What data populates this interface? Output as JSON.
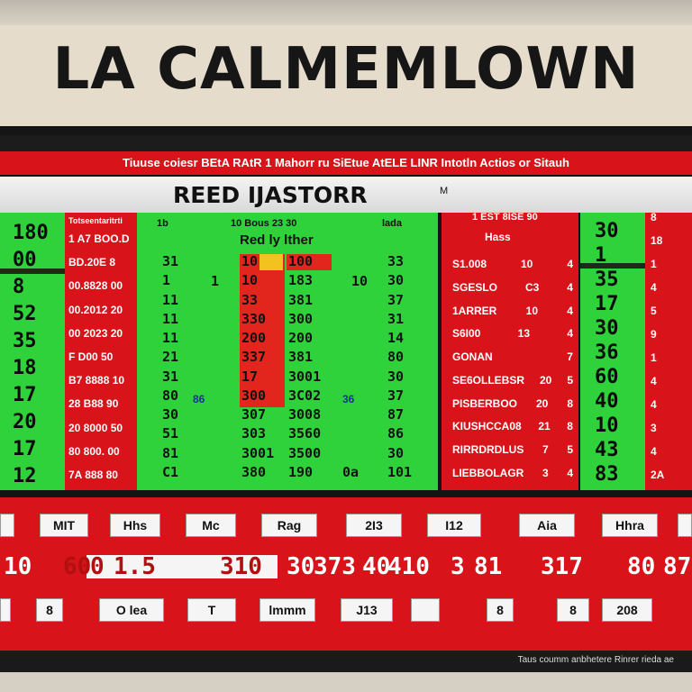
{
  "sign": {
    "text": "LA CALMEMLOWN"
  },
  "ticker": {
    "text": "Tiuuse coiesr BEtA RAtR 1 Mahorr ru SiEtue AtELE LINR Intotln Actios or Sitauh"
  },
  "title": {
    "text": "REED IJASTORR",
    "mark": "M"
  },
  "left_green": {
    "values": [
      "180",
      "00",
      "8",
      "52",
      "35",
      "18",
      "17",
      "20",
      "17",
      "12"
    ]
  },
  "left_red": {
    "header": "Totseentaritrti",
    "rows": [
      "1 A7 BOO.D",
      "BD.20E 8",
      "00.8828 00",
      "00.2012 20",
      "00 2023 20",
      "F D00 50",
      "B7 8888 10",
      "28 B88 90",
      "20 8000 50",
      "80 800. 00",
      "7A 888 80"
    ]
  },
  "center": {
    "headers": [
      "1b",
      "10  Bous 23 30",
      "lada"
    ],
    "subtitle": "Red ly lther",
    "col1": [
      "31",
      "1",
      "11",
      "11",
      "11",
      "21",
      "31",
      "80",
      "30",
      "51",
      "81",
      "C1"
    ],
    "col2": [
      "10",
      "10",
      "33",
      "330",
      "200",
      "337",
      "17",
      "300",
      "307",
      "303",
      "3001",
      "380"
    ],
    "col3": [
      "100",
      "183",
      "381",
      "300",
      "200",
      "381",
      "3001",
      "3C02",
      "3008",
      "3560",
      "3500",
      "190"
    ],
    "col4": [
      "33",
      "30",
      "37",
      "31",
      "14",
      "80",
      "30",
      "37",
      "87",
      "86",
      "30",
      "101"
    ],
    "mid_left": "86",
    "mid_right": "36",
    "side_a": "1",
    "side_b": "10",
    "bottom_tag": "0a"
  },
  "right_red": {
    "header": "1 EST 8ISE 90",
    "sub": "Hass",
    "rows": [
      {
        "name": "S1.008",
        "v": "10"
      },
      {
        "name": "SGESLO",
        "v": "C3"
      },
      {
        "name": "1ARRER",
        "v": "10"
      },
      {
        "name": "S6I00",
        "v": "13"
      },
      {
        "name": "GONAN",
        "v": ""
      },
      {
        "name": "SE6OLLEBSR",
        "v": "20"
      },
      {
        "name": "PISBERBOO",
        "v": "20"
      },
      {
        "name": "KIUSHCCA08",
        "v": "21"
      },
      {
        "name": "RIRRDRDLUS",
        "v": "7"
      },
      {
        "name": "LIEBBOLAGR",
        "v": "3"
      }
    ],
    "nums": [
      "4",
      "4",
      "4",
      "4",
      "7",
      "5",
      "8",
      "8",
      "5",
      "4"
    ]
  },
  "right_green": {
    "values": [
      "30",
      "1",
      "35",
      "17",
      "30",
      "36",
      "60",
      "40",
      "10",
      "43",
      "83"
    ]
  },
  "far_right": {
    "values": [
      "8",
      "18",
      "1",
      "4",
      "5",
      "9",
      "1",
      "4",
      "4",
      "3",
      "4",
      "2A"
    ]
  },
  "labels_row1": [
    "",
    "MIT",
    "Hhs",
    "Mc",
    "Rag",
    "2I3",
    "I12",
    "Aia",
    "Hhra",
    ""
  ],
  "big_row": [
    "10",
    "60",
    "0",
    "1.5",
    "310",
    "30",
    "373",
    "40",
    "410",
    "3",
    "81",
    "317",
    "80",
    "87"
  ],
  "labels_row3": [
    "",
    "8",
    "O lea",
    "T",
    "lmmm",
    "J13",
    "",
    "8",
    "8",
    "208"
  ],
  "footer": {
    "text": "Taus  coumm  anbhetere  Rinrer  rieda  ae"
  },
  "colors": {
    "board_red": "#d8141a",
    "board_green": "#2fd23b",
    "frame": "#141414"
  }
}
